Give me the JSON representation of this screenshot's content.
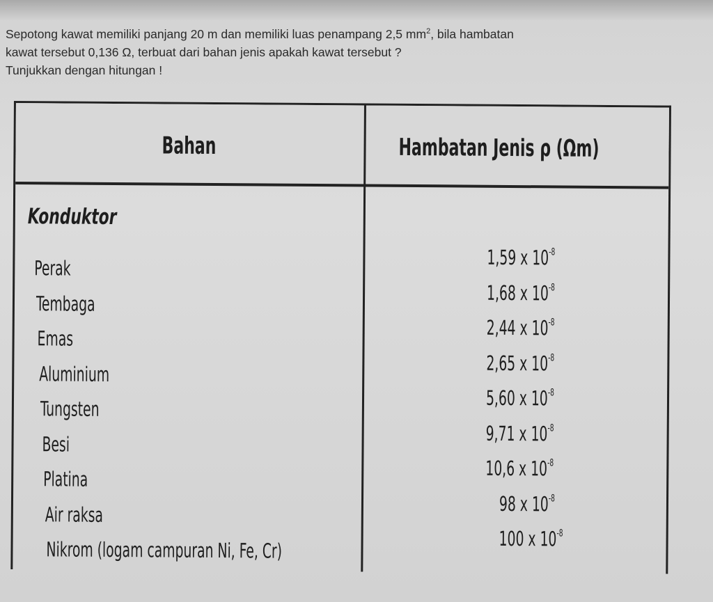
{
  "question": {
    "line1_pre": "Sepotong kawat memiliki panjang 20 m dan memiliki luas penampang 2,5 mm",
    "line1_sup": "2",
    "line1_post": ", bila hambatan",
    "line2": "kawat tersebut 0,136 Ω, terbuat dari bahan jenis apakah kawat tersebut ?",
    "line3": "Tunjukkan dengan hitungan !"
  },
  "table": {
    "headers": [
      "Bahan",
      "Hambatan Jenis ρ (Ωm)"
    ],
    "section": "Konduktor",
    "rows": [
      {
        "material": "Perak",
        "value": "1,59 x 10",
        "exp": "-8"
      },
      {
        "material": "Tembaga",
        "value": "1,68 x 10",
        "exp": "-8"
      },
      {
        "material": "Emas",
        "value": "2,44 x 10",
        "exp": "-8"
      },
      {
        "material": "Aluminium",
        "value": "2,65 x 10",
        "exp": "-8"
      },
      {
        "material": "Tungsten",
        "value": "5,60 x 10",
        "exp": "-8"
      },
      {
        "material": "Besi",
        "value": "9,71 x 10",
        "exp": "-8"
      },
      {
        "material": "Platina",
        "value": "10,6 x 10",
        "exp": "-8"
      },
      {
        "material": "Air raksa",
        "value": "98 x 10",
        "exp": "-8"
      },
      {
        "material": "Nikrom (logam campuran Ni, Fe, Cr)",
        "value": "100 x 10",
        "exp": "-8"
      }
    ]
  }
}
